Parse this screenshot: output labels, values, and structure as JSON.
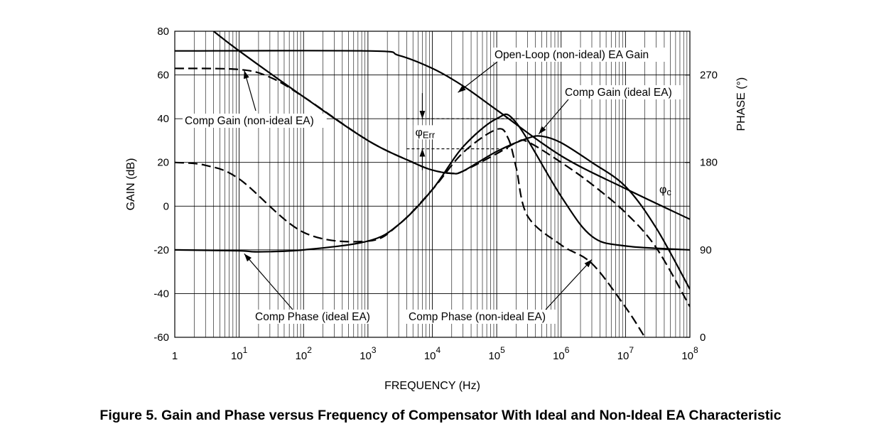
{
  "caption": "Figure 5. Gain and Phase versus Frequency of Compensator With Ideal and Non-Ideal EA Characteristic",
  "chart_data": {
    "type": "line",
    "title": "",
    "xlabel": "FREQUENCY (Hz)",
    "ylabel": "GAIN (dB)",
    "y2label": "PHASE (°)",
    "xscale": "log",
    "xlim": [
      1,
      100000000
    ],
    "ylim": [
      -60,
      80
    ],
    "y2lim": [
      0,
      315
    ],
    "grid": true,
    "x_ticks": [
      {
        "base": "1",
        "exp": ""
      },
      {
        "base": "10",
        "exp": "1"
      },
      {
        "base": "10",
        "exp": "2"
      },
      {
        "base": "10",
        "exp": "3"
      },
      {
        "base": "10",
        "exp": "4"
      },
      {
        "base": "10",
        "exp": "5"
      },
      {
        "base": "10",
        "exp": "6"
      },
      {
        "base": "10",
        "exp": "7"
      },
      {
        "base": "10",
        "exp": "8"
      }
    ],
    "y_ticks": [
      "80",
      "60",
      "40",
      "20",
      "0",
      "-20",
      "-40",
      "-60"
    ],
    "y2_ticks": [
      "270",
      "180",
      "90",
      "0"
    ],
    "series": [
      {
        "name": "Open-Loop (non-ideal) EA Gain",
        "axis": "gain",
        "style": "solid",
        "x": [
          1,
          1000,
          3000,
          10000,
          30000,
          100000,
          1000000,
          10000000,
          100000000
        ],
        "y": [
          71,
          71,
          69,
          63,
          55,
          44,
          23,
          8,
          -6
        ]
      },
      {
        "name": "Comp Gain (ideal EA)",
        "axis": "gain",
        "style": "solid",
        "x": [
          4,
          10,
          100,
          1000,
          5000,
          10000,
          20000,
          30000,
          100000,
          300000,
          500000,
          1000000,
          3000000,
          10000000,
          30000000,
          100000000
        ],
        "y": [
          80,
          71,
          50,
          30,
          20,
          16.5,
          15,
          16,
          25,
          31,
          32,
          29,
          20,
          9,
          -10,
          -38
        ]
      },
      {
        "name": "Comp Gain (non-ideal EA)",
        "axis": "gain",
        "style": "dashed",
        "x": [
          1,
          10,
          30,
          100,
          1000,
          5000,
          10000,
          20000,
          30000,
          100000,
          200000,
          300000,
          1000000,
          3000000,
          10000000,
          30000000,
          100000000
        ],
        "y": [
          63,
          62.5,
          59,
          50,
          30,
          20,
          16.5,
          15,
          16,
          24,
          29,
          29.5,
          20,
          10,
          -3,
          -19,
          -46
        ]
      },
      {
        "name": "Comp Phase (ideal EA)",
        "axis": "phase",
        "style": "solid",
        "x": [
          1,
          10,
          20,
          100,
          1000,
          3000,
          10000,
          30000,
          100000,
          200000,
          1000000,
          3000000,
          10000000,
          100000000
        ],
        "y": [
          90,
          89,
          88,
          90,
          99,
          116,
          152,
          196,
          225,
          221,
          145,
          104,
          94,
          90
        ]
      },
      {
        "name": "Comp Phase (non-ideal EA)",
        "axis": "phase",
        "style": "dashed",
        "x": [
          1,
          3,
          10,
          100,
          1000,
          3000,
          10000,
          30000,
          100000,
          150000,
          200000,
          300000,
          1000000,
          3000000,
          10000000,
          20000000
        ],
        "y": [
          180,
          177,
          163,
          108,
          99,
          116,
          152,
          190,
          214,
          205,
          175,
          125,
          95,
          76,
          31,
          0
        ]
      }
    ],
    "annotations": [
      {
        "label": "Open-Loop (non-ideal) EA Gain"
      },
      {
        "label": "Comp Gain (ideal EA)"
      },
      {
        "label": "Comp Gain (non-ideal EA)"
      },
      {
        "label": "Comp Phase (ideal EA)"
      },
      {
        "label": "Comp Phase (non-ideal EA)"
      },
      {
        "label": "φc",
        "symbol": "φ",
        "sub": "c"
      },
      {
        "label": "φErr",
        "symbol": "φ",
        "sub": "Err",
        "phase_range": [
          194,
          225
        ]
      }
    ]
  }
}
